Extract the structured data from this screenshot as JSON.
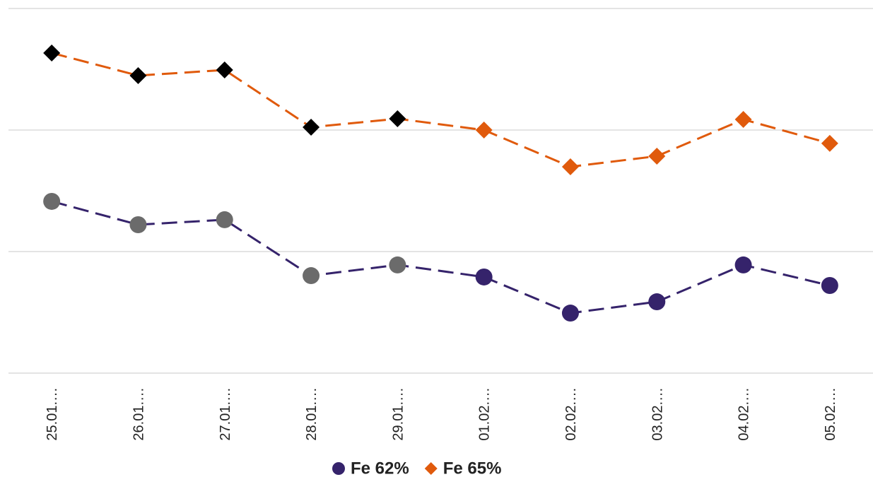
{
  "chart_data": {
    "type": "line",
    "categories": [
      "25.01.…",
      "26.01.…",
      "27.01.…",
      "28.01.…",
      "29.01.…",
      "01.02.…",
      "02.02.…",
      "03.02.…",
      "04.02.…",
      "05.02.…"
    ],
    "series": [
      {
        "name": "Fe 62%",
        "color": "#35236b",
        "marker": "circle",
        "point_colors": [
          "#6b6b6b",
          "#6b6b6b",
          "#6b6b6b",
          "#6b6b6b",
          "#6b6b6b",
          "#35236b",
          "#35236b",
          "#35236b",
          "#35236b",
          "#35236b"
        ],
        "values": [
          141.3,
          122.1,
          126.2,
          80.2,
          89.0,
          79.1,
          49.4,
          58.7,
          89.0,
          72.1
        ]
      },
      {
        "name": "Fe 65%",
        "color": "#e05a0c",
        "marker": "diamond",
        "point_colors": [
          "#000000",
          "#000000",
          "#000000",
          "#000000",
          "#000000",
          "#e05a0c",
          "#e05a0c",
          "#e05a0c",
          "#e05a0c",
          "#e05a0c"
        ],
        "values": [
          263.4,
          244.8,
          249.4,
          202.3,
          209.3,
          200.0,
          169.8,
          178.5,
          208.7,
          189.0
        ]
      }
    ],
    "ylim": [
      0,
      300
    ],
    "yticks": [
      0,
      100,
      200,
      300
    ],
    "grid": true,
    "legend": "bottom"
  }
}
